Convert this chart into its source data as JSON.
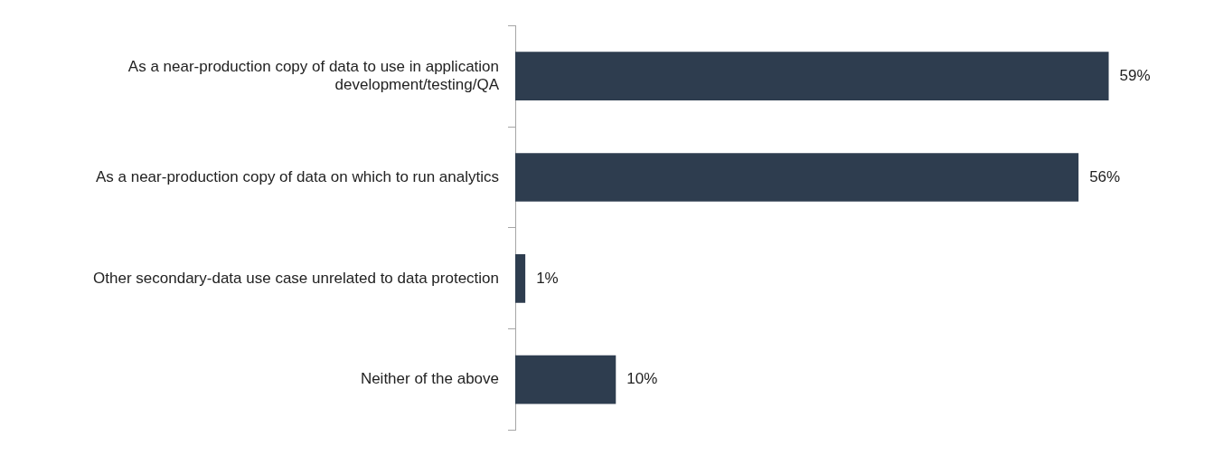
{
  "chart_data": {
    "type": "bar",
    "orientation": "horizontal",
    "categories": [
      "As a near-production copy of data to use in application development/testing/QA",
      "As a near-production copy of data on which to run analytics",
      "Other secondary-data use case unrelated to data protection",
      "Neither of the above"
    ],
    "values": [
      59,
      56,
      1,
      10
    ],
    "value_labels": [
      "59%",
      "56%",
      "1%",
      "10%"
    ],
    "color": "#2e3d4f",
    "grid": false,
    "legend": false,
    "tick_labels": "y"
  }
}
